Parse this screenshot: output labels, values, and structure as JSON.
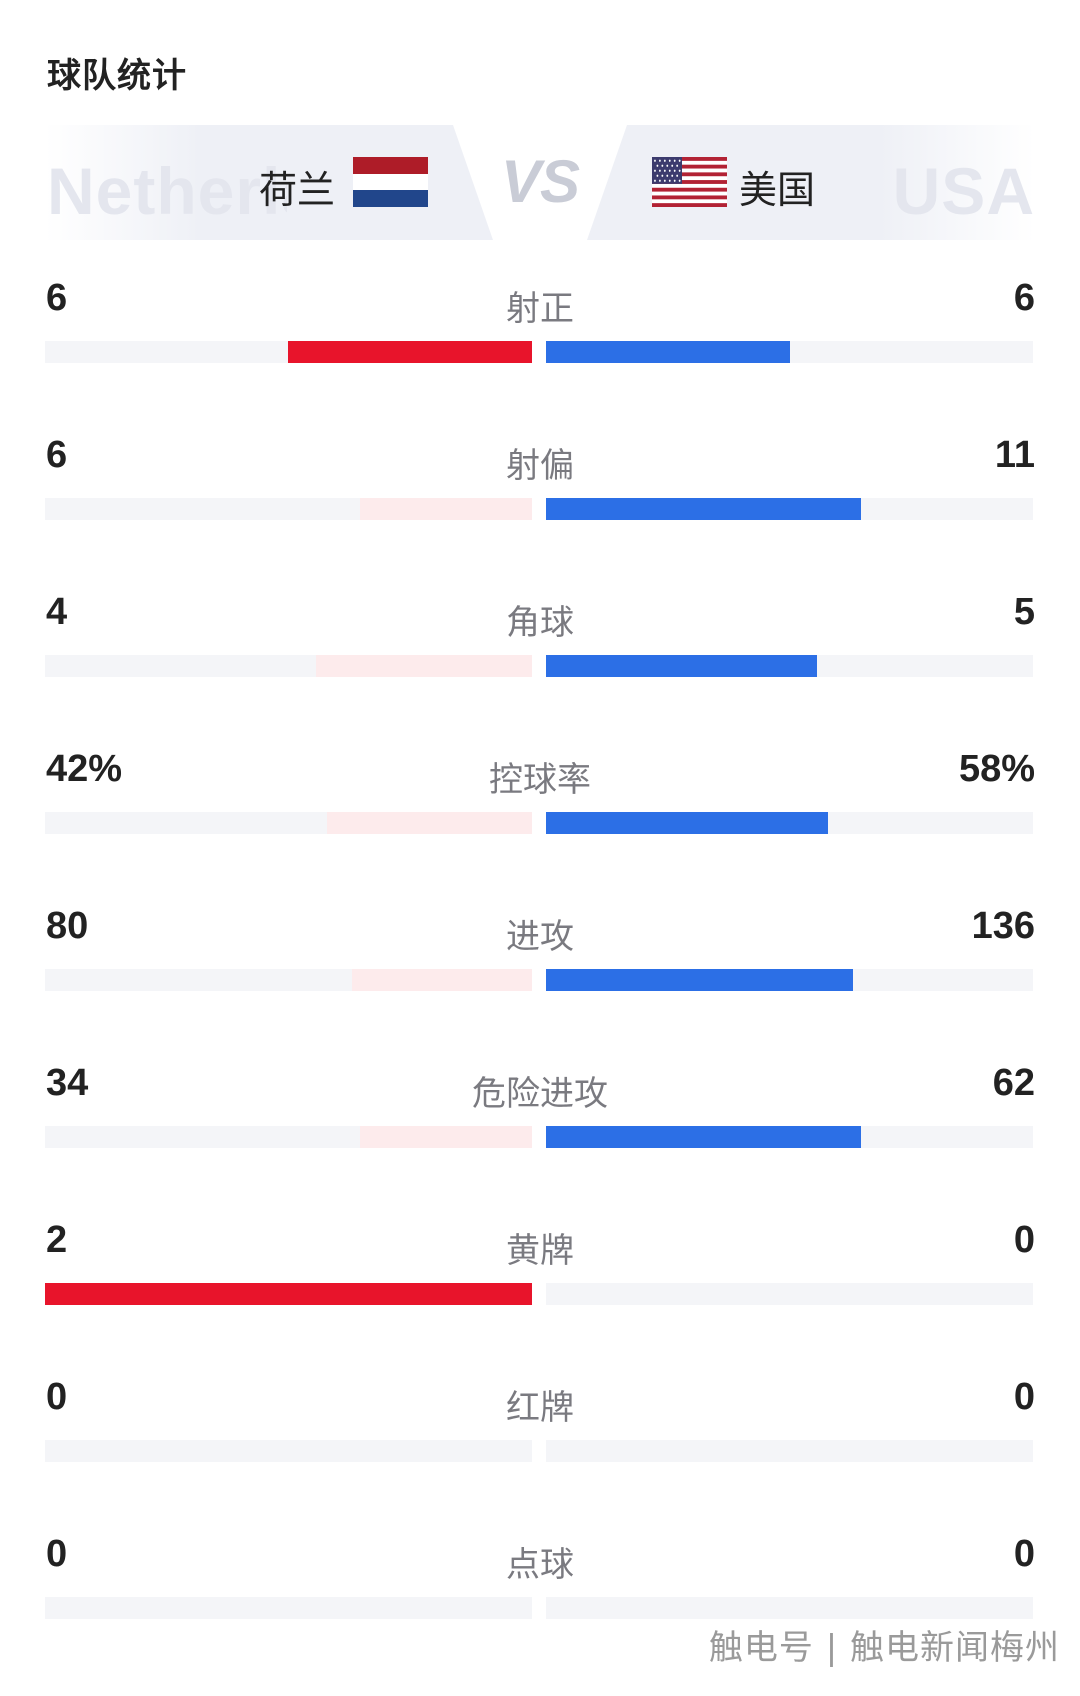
{
  "page_title": "球队统计",
  "header": {
    "home_team": "荷兰",
    "away_team": "美国",
    "home_ghost": "Netherlands",
    "away_ghost": "USA",
    "vs": "VS"
  },
  "colors": {
    "home_strong": "#e8142b",
    "home_light": "#fdebec",
    "away_strong": "#2c6fe6",
    "track": "#f4f5f8"
  },
  "stats": [
    {
      "label": "射正",
      "home": "6",
      "away": "6",
      "home_share": 0.5,
      "away_share": 0.5,
      "home_leads": true,
      "away_leads": true
    },
    {
      "label": "射偏",
      "home": "6",
      "away": "11",
      "home_share": 0.353,
      "away_share": 0.647,
      "home_leads": false,
      "away_leads": true
    },
    {
      "label": "角球",
      "home": "4",
      "away": "5",
      "home_share": 0.444,
      "away_share": 0.556,
      "home_leads": false,
      "away_leads": true
    },
    {
      "label": "控球率",
      "home": "42%",
      "away": "58%",
      "home_share": 0.42,
      "away_share": 0.58,
      "home_leads": false,
      "away_leads": true
    },
    {
      "label": "进攻",
      "home": "80",
      "away": "136",
      "home_share": 0.37,
      "away_share": 0.63,
      "home_leads": false,
      "away_leads": true
    },
    {
      "label": "危险进攻",
      "home": "34",
      "away": "62",
      "home_share": 0.354,
      "away_share": 0.646,
      "home_leads": false,
      "away_leads": true
    },
    {
      "label": "黄牌",
      "home": "2",
      "away": "0",
      "home_share": 1.0,
      "away_share": 0.0,
      "home_leads": true,
      "away_leads": false
    },
    {
      "label": "红牌",
      "home": "0",
      "away": "0",
      "home_share": 0.0,
      "away_share": 0.0,
      "home_leads": false,
      "away_leads": false
    },
    {
      "label": "点球",
      "home": "0",
      "away": "0",
      "home_share": 0.0,
      "away_share": 0.0,
      "home_leads": false,
      "away_leads": false
    }
  ],
  "watermark": "触电号 | 触电新闻梅州"
}
